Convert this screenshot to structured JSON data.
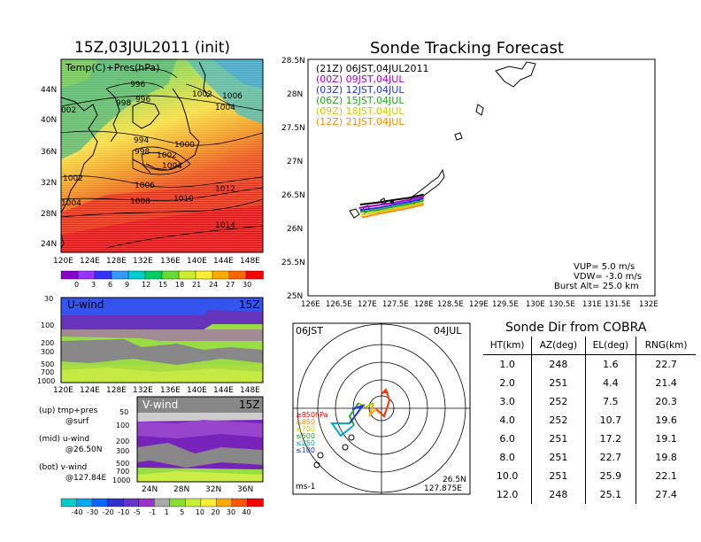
{
  "left_panel": {
    "title": "15Z,03JUL2011 (init)",
    "map_label": "Temp(C)+Pres(hPa)",
    "lat_labels": [
      "44N",
      "40N",
      "36N",
      "32N",
      "28N",
      "24N"
    ],
    "lon_labels": [
      "120E",
      "124E",
      "128E",
      "132E",
      "136E",
      "140E",
      "144E",
      "148E"
    ],
    "isobar_labels": [
      {
        "text": "996"
      },
      {
        "text": "996"
      },
      {
        "text": "998"
      },
      {
        "text": "1002"
      },
      {
        "text": "1006"
      },
      {
        "text": "1004"
      },
      {
        "text": "002"
      },
      {
        "text": "994"
      },
      {
        "text": "998"
      },
      {
        "text": "1002"
      },
      {
        "text": "1000"
      },
      {
        "text": "1004"
      },
      {
        "text": "1002"
      },
      {
        "text": "1006"
      },
      {
        "text": "1004"
      },
      {
        "text": "1008"
      },
      {
        "text": "1010"
      },
      {
        "text": "1012"
      },
      {
        "text": "1014"
      }
    ],
    "temp_colorbar": {
      "ticks": [
        "0",
        "3",
        "6",
        "9",
        "12",
        "15",
        "18",
        "21",
        "24",
        "27",
        "30"
      ],
      "colors": [
        "#8800cc",
        "#9933ff",
        "#3333ff",
        "#3399ff",
        "#00cccc",
        "#00cc66",
        "#66dd33",
        "#ccee33",
        "#ffee33",
        "#ffaa00",
        "#ff6600",
        "#ff0000"
      ]
    }
  },
  "u_panel": {
    "label": "U-wind",
    "time": "15Z",
    "y_ticks": [
      "30",
      "100",
      "200",
      "300",
      "500",
      "700",
      "1000"
    ],
    "x_ticks": [
      "120E",
      "124E",
      "128E",
      "132E",
      "136E",
      "140E",
      "144E",
      "148E"
    ]
  },
  "v_panel": {
    "label": "V-wind",
    "time": "15Z",
    "y_ticks": [
      "50",
      "100",
      "200",
      "300",
      "500",
      "700",
      "1000"
    ],
    "x_ticks": [
      "24N",
      "28N",
      "32N",
      "36N"
    ]
  },
  "notes": [
    {
      "line1": "(up) tmp+pres",
      "line2": "@surf"
    },
    {
      "line1": "(mid) u-wind",
      "line2": "@26.50N"
    },
    {
      "line1": "(bot) v-wind",
      "line2": "@127.84E"
    }
  ],
  "wind_colorbar": {
    "ticks": [
      "-40",
      "-30",
      "-20",
      "-10",
      "-5",
      "-1",
      "1",
      "5",
      "10",
      "20",
      "30",
      "40"
    ],
    "colors": [
      "#00cccc",
      "#00aaee",
      "#0066ff",
      "#3333cc",
      "#6633cc",
      "#9933cc",
      "#aaaaaa",
      "#88dd33",
      "#ccee33",
      "#ffee33",
      "#ffaa00",
      "#ff5500",
      "#ff0000"
    ]
  },
  "tracking": {
    "title": "Sonde Tracking Forecast",
    "lat_labels": [
      "28.5N",
      "28N",
      "27.5N",
      "27N",
      "26.5N",
      "26N",
      "25.5N",
      "25N"
    ],
    "lon_labels": [
      "126E",
      "126.5E",
      "127E",
      "127.5E",
      "128E",
      "128.5E",
      "129E",
      "129.5E",
      "130E",
      "130.5E",
      "131E",
      "131.5E",
      "132E"
    ],
    "legend": [
      {
        "text": "(21Z)  06JST,04JUL2011",
        "color": "#000000"
      },
      {
        "text": "(00Z)  09JST,04JUL",
        "color": "#aa00cc"
      },
      {
        "text": "(03Z)  12JST,04JUL",
        "color": "#2233dd"
      },
      {
        "text": "(06Z)  15JST,04JUL",
        "color": "#22aa22"
      },
      {
        "text": "(09Z)  18JST,04JUL",
        "color": "#cccc00"
      },
      {
        "text": "(12Z)  21JST,04JUL",
        "color": "#ff8800"
      }
    ],
    "vup": "VUP=  5.0  m/s",
    "vdw": "VDW= -3.0  m/s",
    "burst": "Burst Alt=  25.0  km"
  },
  "polar": {
    "time_label": "06JST",
    "date_label": "04JUL",
    "pressure_labels": [
      {
        "text": "≥850hPa",
        "color": "#ff0000"
      },
      {
        "text": "≤850",
        "color": "#ff8800"
      },
      {
        "text": "≤700",
        "color": "#cccc00"
      },
      {
        "text": "≤500",
        "color": "#22aa22"
      },
      {
        "text": "≤250",
        "color": "#00aaaa"
      },
      {
        "text": "≤100",
        "color": "#2233dd"
      }
    ],
    "unit": "ms-1",
    "lat": "26.5N",
    "lon": "127.875E"
  },
  "direction_table": {
    "title": "Sonde Dir from COBRA",
    "headers": [
      "HT(km)",
      "AZ(deg)",
      "EL(deg)",
      "RNG(km)"
    ],
    "rows": [
      [
        "1.0",
        "248",
        "1.6",
        "22.7"
      ],
      [
        "2.0",
        "251",
        "4.4",
        "21.4"
      ],
      [
        "3.0",
        "252",
        "7.5",
        "20.3"
      ],
      [
        "4.0",
        "252",
        "10.7",
        "19.6"
      ],
      [
        "6.0",
        "251",
        "17.2",
        "19.1"
      ],
      [
        "8.0",
        "251",
        "22.7",
        "19.8"
      ],
      [
        "10.0",
        "251",
        "25.9",
        "22.1"
      ],
      [
        "12.0",
        "248",
        "25.1",
        "27.4"
      ]
    ]
  },
  "chart_data": [
    {
      "type": "heatmap",
      "title": "15Z,03JUL2011 (init)",
      "subtitle": "Temp(C)+Pres(hPa)",
      "x_ticks": [
        "120E",
        "124E",
        "128E",
        "132E",
        "136E",
        "140E",
        "144E",
        "148E"
      ],
      "y_ticks": [
        "24N",
        "28N",
        "32N",
        "36N",
        "40N",
        "44N"
      ],
      "colorbar_ticks": [
        0,
        3,
        6,
        9,
        12,
        15,
        18,
        21,
        24,
        27,
        30
      ]
    },
    {
      "type": "heatmap",
      "title": "U-wind",
      "x_ticks": [
        "120E",
        "124E",
        "128E",
        "132E",
        "136E",
        "140E",
        "144E",
        "148E"
      ],
      "y_ticks": [
        30,
        100,
        200,
        300,
        500,
        700,
        1000
      ]
    },
    {
      "type": "heatmap",
      "title": "V-wind",
      "x_ticks": [
        "24N",
        "28N",
        "32N",
        "36N"
      ],
      "y_ticks": [
        50,
        100,
        200,
        300,
        500,
        700,
        1000
      ],
      "colorbar_ticks": [
        -40,
        -30,
        -20,
        -10,
        -5,
        -1,
        1,
        5,
        10,
        20,
        30,
        40
      ]
    },
    {
      "type": "line",
      "title": "Sonde Tracking Forecast",
      "xlim": [
        126,
        132
      ],
      "ylim": [
        25,
        28.5
      ],
      "series": [
        {
          "name": "(21Z)  06JST,04JUL2011",
          "x": [
            126.9,
            127.2,
            127.5,
            127.75,
            128.0
          ],
          "y": [
            26.35,
            26.38,
            26.42,
            26.45,
            26.5
          ]
        },
        {
          "name": "(00Z)  09JST,04JUL",
          "x": [
            126.88,
            127.2,
            127.5,
            127.75,
            128.0
          ],
          "y": [
            26.3,
            26.34,
            26.38,
            26.42,
            26.47
          ]
        },
        {
          "name": "(03Z)  12JST,04JUL",
          "x": [
            126.9,
            127.2,
            127.5,
            127.75,
            128.0
          ],
          "y": [
            26.27,
            26.3,
            26.35,
            26.39,
            26.44
          ]
        },
        {
          "name": "(06Z)  15JST,04JUL",
          "x": [
            126.9,
            127.2,
            127.5,
            127.75,
            128.0
          ],
          "y": [
            26.24,
            26.27,
            26.32,
            26.36,
            26.41
          ]
        },
        {
          "name": "(09Z)  18JST,04JUL",
          "x": [
            126.92,
            127.2,
            127.5,
            127.75,
            128.0
          ],
          "y": [
            26.2,
            26.24,
            26.29,
            26.33,
            26.38
          ]
        },
        {
          "name": "(12Z)  21JST,04JUL",
          "x": [
            126.93,
            127.2,
            127.5,
            127.75,
            128.0
          ],
          "y": [
            26.16,
            26.21,
            26.26,
            26.3,
            26.35
          ]
        }
      ]
    },
    {
      "type": "table",
      "title": "Sonde Dir from COBRA",
      "columns": [
        "HT(km)",
        "AZ(deg)",
        "EL(deg)",
        "RNG(km)"
      ],
      "rows": [
        [
          1.0,
          248,
          1.6,
          22.7
        ],
        [
          2.0,
          251,
          4.4,
          21.4
        ],
        [
          3.0,
          252,
          7.5,
          20.3
        ],
        [
          4.0,
          252,
          10.7,
          19.6
        ],
        [
          6.0,
          251,
          17.2,
          19.1
        ],
        [
          8.0,
          251,
          22.7,
          19.8
        ],
        [
          10.0,
          251,
          25.9,
          22.1
        ],
        [
          12.0,
          248,
          25.1,
          27.4
        ]
      ]
    }
  ]
}
